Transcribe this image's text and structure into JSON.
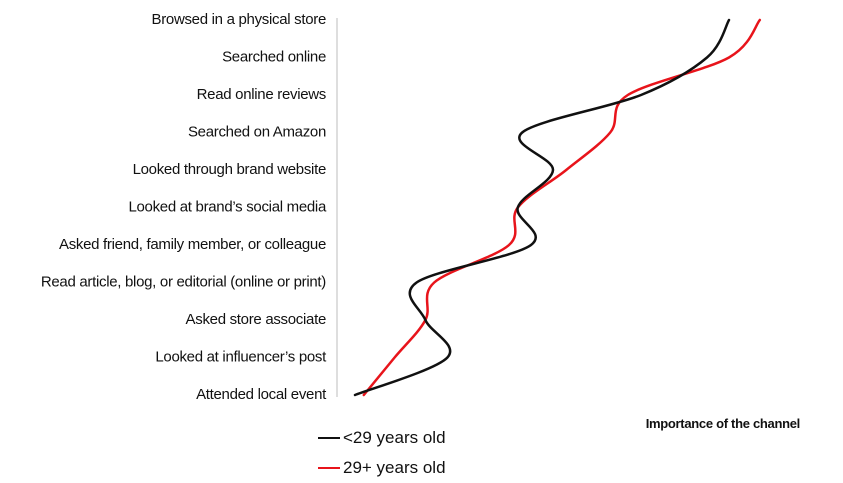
{
  "chart_data": {
    "type": "line",
    "orientation": "horizontal",
    "categories": [
      "Browsed in a physical store",
      "Searched online",
      "Read online reviews",
      "Searched on Amazon",
      "Looked through brand website",
      "Looked at brand’s social media",
      "Asked friend, family member, or colleague",
      "Read article, blog, or editorial (online or print)",
      "Asked store associate",
      "Looked at influencer’s post",
      "Attended local event"
    ],
    "series": [
      {
        "name": "<29 years old",
        "color": "#111111",
        "values": [
          85,
          80,
          65,
          38,
          45,
          37,
          40,
          14,
          16,
          21,
          0
        ]
      },
      {
        "name": "29+ years old",
        "color": "#e8141b",
        "values": [
          92,
          85,
          62,
          58,
          48,
          37,
          35,
          18,
          16,
          9,
          2
        ]
      }
    ],
    "xlabel": "Importance of the channel",
    "ylabel": "",
    "xlim": [
      0,
      100
    ],
    "grid": false,
    "legend_position": "bottom-left",
    "x_ticks_visible": false
  }
}
